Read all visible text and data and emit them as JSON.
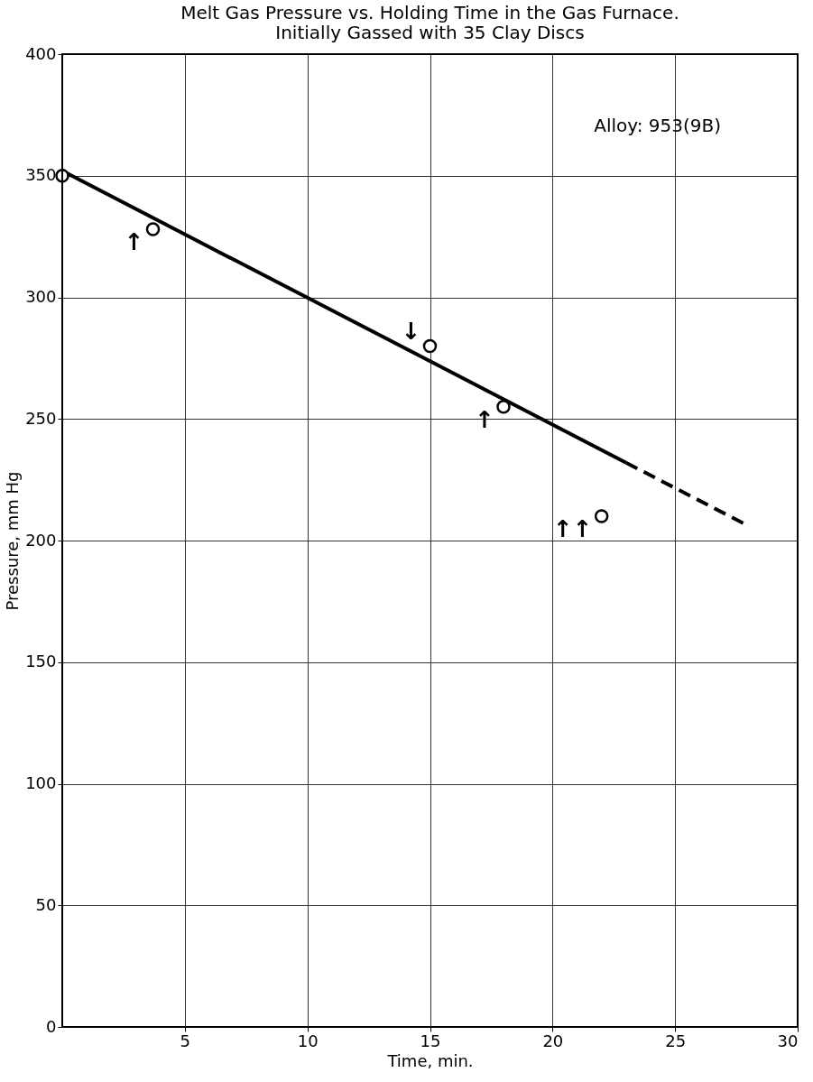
{
  "chart_data": {
    "type": "scatter",
    "title": [
      "Melt Gas Pressure vs. Holding Time in the Gas Furnace.",
      "Initially Gassed with 35 Clay Discs"
    ],
    "xlabel": "Time, min.",
    "ylabel": "Pressure, mm Hg",
    "xlim": [
      0,
      30
    ],
    "xticks": [
      5,
      10,
      15,
      20,
      25,
      30
    ],
    "ylim": [
      0,
      400
    ],
    "yticks": [
      0,
      50,
      100,
      150,
      200,
      250,
      300,
      350,
      400
    ],
    "grid": true,
    "marker": "circle",
    "series": [
      {
        "color": "#000000",
        "x": [
          0,
          3.7,
          15,
          18,
          22
        ],
        "values": [
          350,
          328,
          280,
          255,
          210
        ]
      },
      {
        "type": "line",
        "marker": "none",
        "color": "#000000",
        "line_style": "solid",
        "x": [
          0,
          23
        ],
        "values": [
          352,
          232
        ]
      },
      {
        "type": "line",
        "marker": "none",
        "color": "#000000",
        "line_style": "dashed",
        "x": [
          23,
          28
        ],
        "values": [
          232,
          206
        ]
      }
    ],
    "annotations": [
      "Alloy: 953(9B)",
      {
        "text": "↑",
        "x": 3.7,
        "y": 328
      },
      {
        "text": "↓",
        "x": 15,
        "y": 280
      },
      {
        "text": "↑",
        "x": 18,
        "y": 255
      },
      {
        "text": "↑↑",
        "x": 22,
        "y": 210
      }
    ]
  }
}
